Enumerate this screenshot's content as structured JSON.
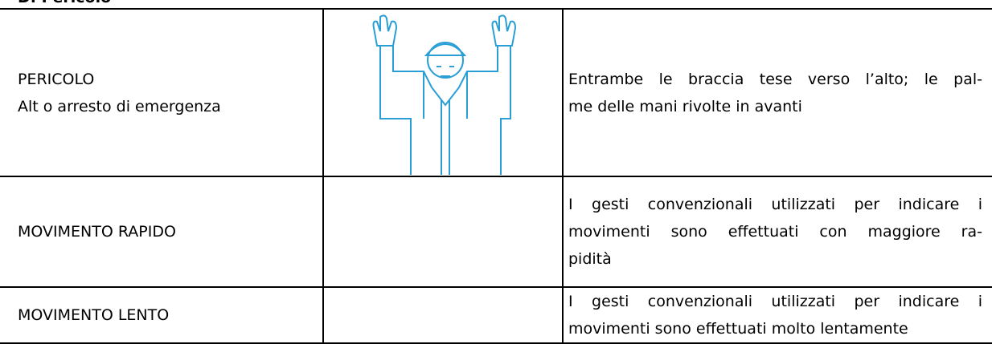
{
  "header": {
    "title": "D. Pericolo"
  },
  "table": {
    "rows": [
      {
        "signal": [
          "PERICOLO",
          "Alt o arresto di emergenza"
        ],
        "description": [
          "Entrambe le braccia tese verso l’alto; le pal-",
          "me delle mani rivolte in avanti"
        ]
      },
      {
        "signal": [
          "MOVIMENTO RAPIDO"
        ],
        "description": [
          "I gesti convenzionali utilizzati per indicare i",
          "movimenti sono effettuati con maggiore ra-",
          "pidità"
        ]
      },
      {
        "signal": [
          "MOVIMENTO LENTO"
        ],
        "description": [
          "I gesti convenzionali utilizzati per indicare i",
          "movimenti sono effettuati molto lentamente"
        ]
      }
    ]
  }
}
